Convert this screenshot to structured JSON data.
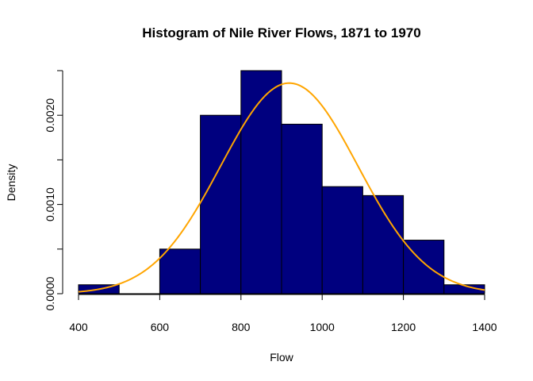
{
  "chart_data": {
    "type": "bar",
    "title": "Histogram of Nile River Flows, 1871 to 1970",
    "xlabel": "Flow",
    "ylabel": "Density",
    "bins": [
      {
        "start": 400,
        "end": 500,
        "density": 0.0001
      },
      {
        "start": 500,
        "end": 600,
        "density": 0.0
      },
      {
        "start": 600,
        "end": 700,
        "density": 0.0005
      },
      {
        "start": 700,
        "end": 800,
        "density": 0.002
      },
      {
        "start": 800,
        "end": 900,
        "density": 0.0025
      },
      {
        "start": 900,
        "end": 1000,
        "density": 0.0019
      },
      {
        "start": 1000,
        "end": 1100,
        "density": 0.0012
      },
      {
        "start": 1100,
        "end": 1200,
        "density": 0.0011
      },
      {
        "start": 1200,
        "end": 1300,
        "density": 0.0006
      },
      {
        "start": 1300,
        "end": 1400,
        "density": 0.0001
      }
    ],
    "xlim": [
      400,
      1400
    ],
    "ylim": [
      0,
      0.0025
    ],
    "x_ticks": [
      "400",
      "600",
      "800",
      "1000",
      "1200",
      "1400"
    ],
    "y_ticks": [
      "0.0000",
      "0.0010",
      "0.0020"
    ],
    "density_curve": {
      "mean": 919,
      "sd": 169
    },
    "colors": {
      "bars": "#00007F",
      "bar_border": "#000000",
      "curve": "#FFA500"
    },
    "grid": false,
    "legend": "none"
  }
}
